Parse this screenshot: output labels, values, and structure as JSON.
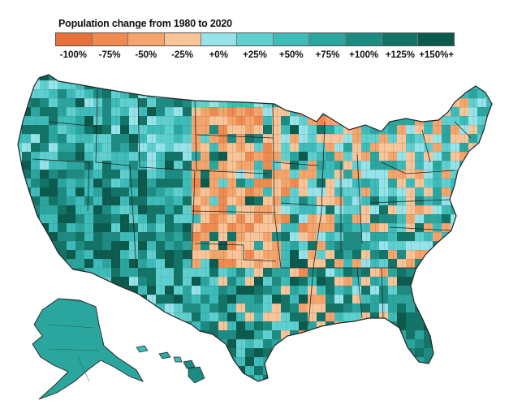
{
  "legend": {
    "title": "Population change from 1980 to 2020",
    "bins": [
      {
        "label": "-100%",
        "color": "#e8703a"
      },
      {
        "label": "-75%",
        "color": "#f08a50"
      },
      {
        "label": "-50%",
        "color": "#f5a46c"
      },
      {
        "label": "-25%",
        "color": "#f8c498"
      },
      {
        "label": "+0%",
        "color": "#96e4ea"
      },
      {
        "label": "+25%",
        "color": "#5fd0d0"
      },
      {
        "label": "+50%",
        "color": "#3dbcba"
      },
      {
        "label": "+75%",
        "color": "#2aa69f"
      },
      {
        "label": "+100%",
        "color": "#1c8c83"
      },
      {
        "label": "+125%",
        "color": "#117467"
      },
      {
        "label": "+150%+",
        "color": "#0a5a4d"
      }
    ]
  },
  "map": {
    "title": "United States counties",
    "regions": [
      "Contiguous United States",
      "Alaska",
      "Hawaii"
    ]
  }
}
